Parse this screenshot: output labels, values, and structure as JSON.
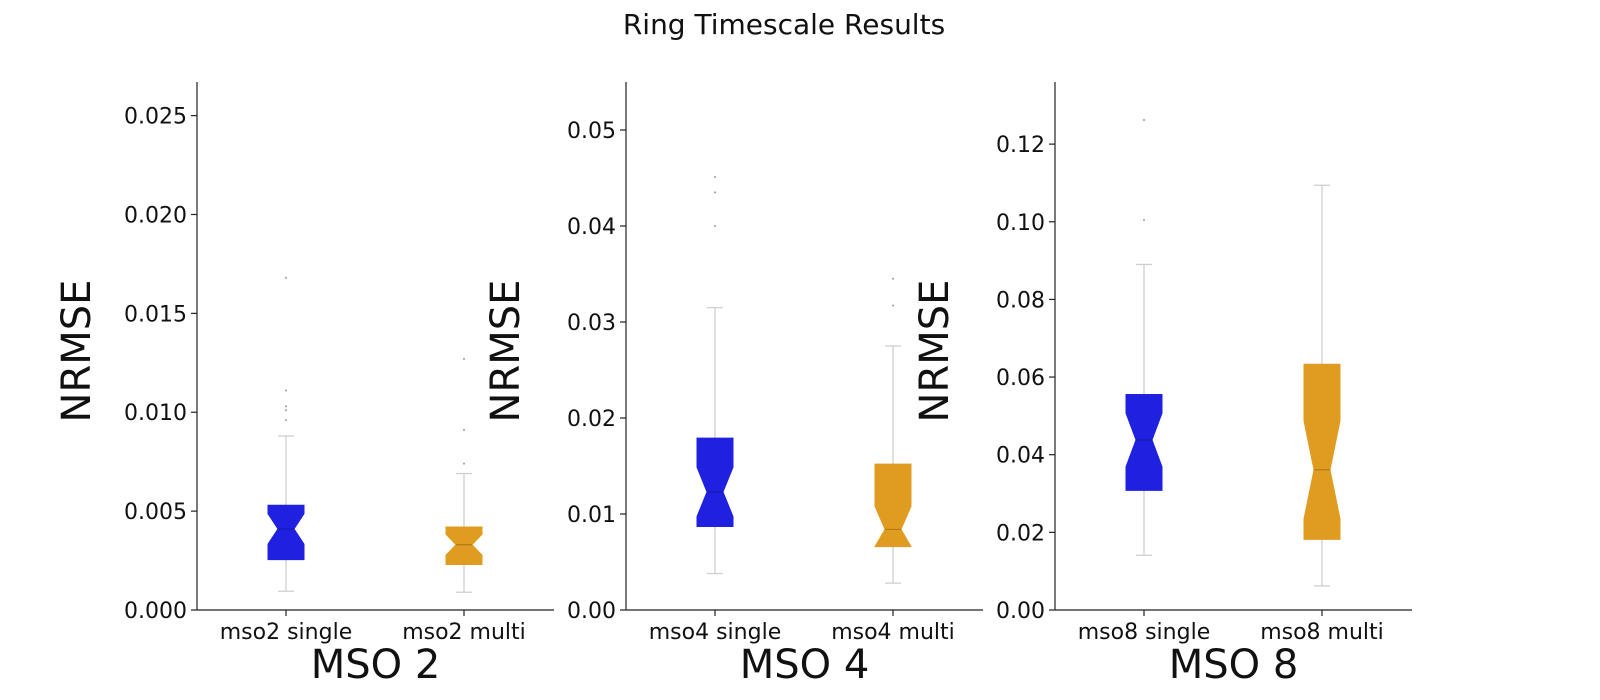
{
  "figure": {
    "title": "Ring Timescale Results"
  },
  "chart_data": [
    {
      "type": "box",
      "title": "",
      "xlabel": "MSO 2",
      "ylabel": "NRMSE",
      "ylim": [
        0,
        0.0267
      ],
      "yticks": [
        "0.000",
        "0.005",
        "0.010",
        "0.015",
        "0.020",
        "0.025"
      ],
      "ytick_values": [
        0,
        0.005,
        0.01,
        0.015,
        0.02,
        0.025
      ],
      "categories": [
        "mso2 single",
        "mso2 multi"
      ],
      "colors": [
        "#2020e0",
        "#e09c20"
      ],
      "notched": true,
      "boxes": [
        {
          "whislo": 0.00095,
          "q1": 0.00255,
          "med": 0.0041,
          "q3": 0.0053,
          "whishi": 0.0088,
          "fliers": [
            0.0096,
            0.0101,
            0.0103,
            0.0111,
            0.0168
          ]
        },
        {
          "whislo": 0.0009,
          "q1": 0.0023,
          "med": 0.0033,
          "q3": 0.0042,
          "whishi": 0.0069,
          "fliers": [
            0.0074,
            0.0091,
            0.0127
          ]
        }
      ]
    },
    {
      "type": "box",
      "title": "",
      "xlabel": "MSO 4",
      "ylabel": "NRMSE",
      "ylim": [
        0,
        0.055
      ],
      "yticks": [
        "0.00",
        "0.01",
        "0.02",
        "0.03",
        "0.04",
        "0.05"
      ],
      "ytick_values": [
        0,
        0.01,
        0.02,
        0.03,
        0.04,
        0.05
      ],
      "categories": [
        "mso4 single",
        "mso4 multi"
      ],
      "colors": [
        "#2020e0",
        "#e09c20"
      ],
      "notched": true,
      "boxes": [
        {
          "whislo": 0.0038,
          "q1": 0.0087,
          "med": 0.0123,
          "q3": 0.0179,
          "whishi": 0.0315,
          "fliers": [
            0.04,
            0.0435,
            0.0451
          ]
        },
        {
          "whislo": 0.0028,
          "q1": 0.0066,
          "med": 0.0084,
          "q3": 0.0152,
          "whishi": 0.0275,
          "fliers": [
            0.0317,
            0.0345
          ]
        }
      ]
    },
    {
      "type": "box",
      "title": "",
      "xlabel": "MSO 8",
      "ylabel": "NRMSE",
      "ylim": [
        0,
        0.136
      ],
      "yticks": [
        "0.00",
        "0.02",
        "0.04",
        "0.06",
        "0.08",
        "0.10",
        "0.12"
      ],
      "ytick_values": [
        0,
        0.02,
        0.04,
        0.06,
        0.08,
        0.1,
        0.12
      ],
      "categories": [
        "mso8 single",
        "mso8 multi"
      ],
      "colors": [
        "#2020e0",
        "#e09c20"
      ],
      "notched": true,
      "boxes": [
        {
          "whislo": 0.0141,
          "q1": 0.0308,
          "med": 0.0438,
          "q3": 0.0555,
          "whishi": 0.089,
          "fliers": [
            0.1005,
            0.1262
          ]
        },
        {
          "whislo": 0.0062,
          "q1": 0.0182,
          "med": 0.0361,
          "q3": 0.0633,
          "whishi": 0.1094,
          "fliers": []
        }
      ]
    }
  ]
}
